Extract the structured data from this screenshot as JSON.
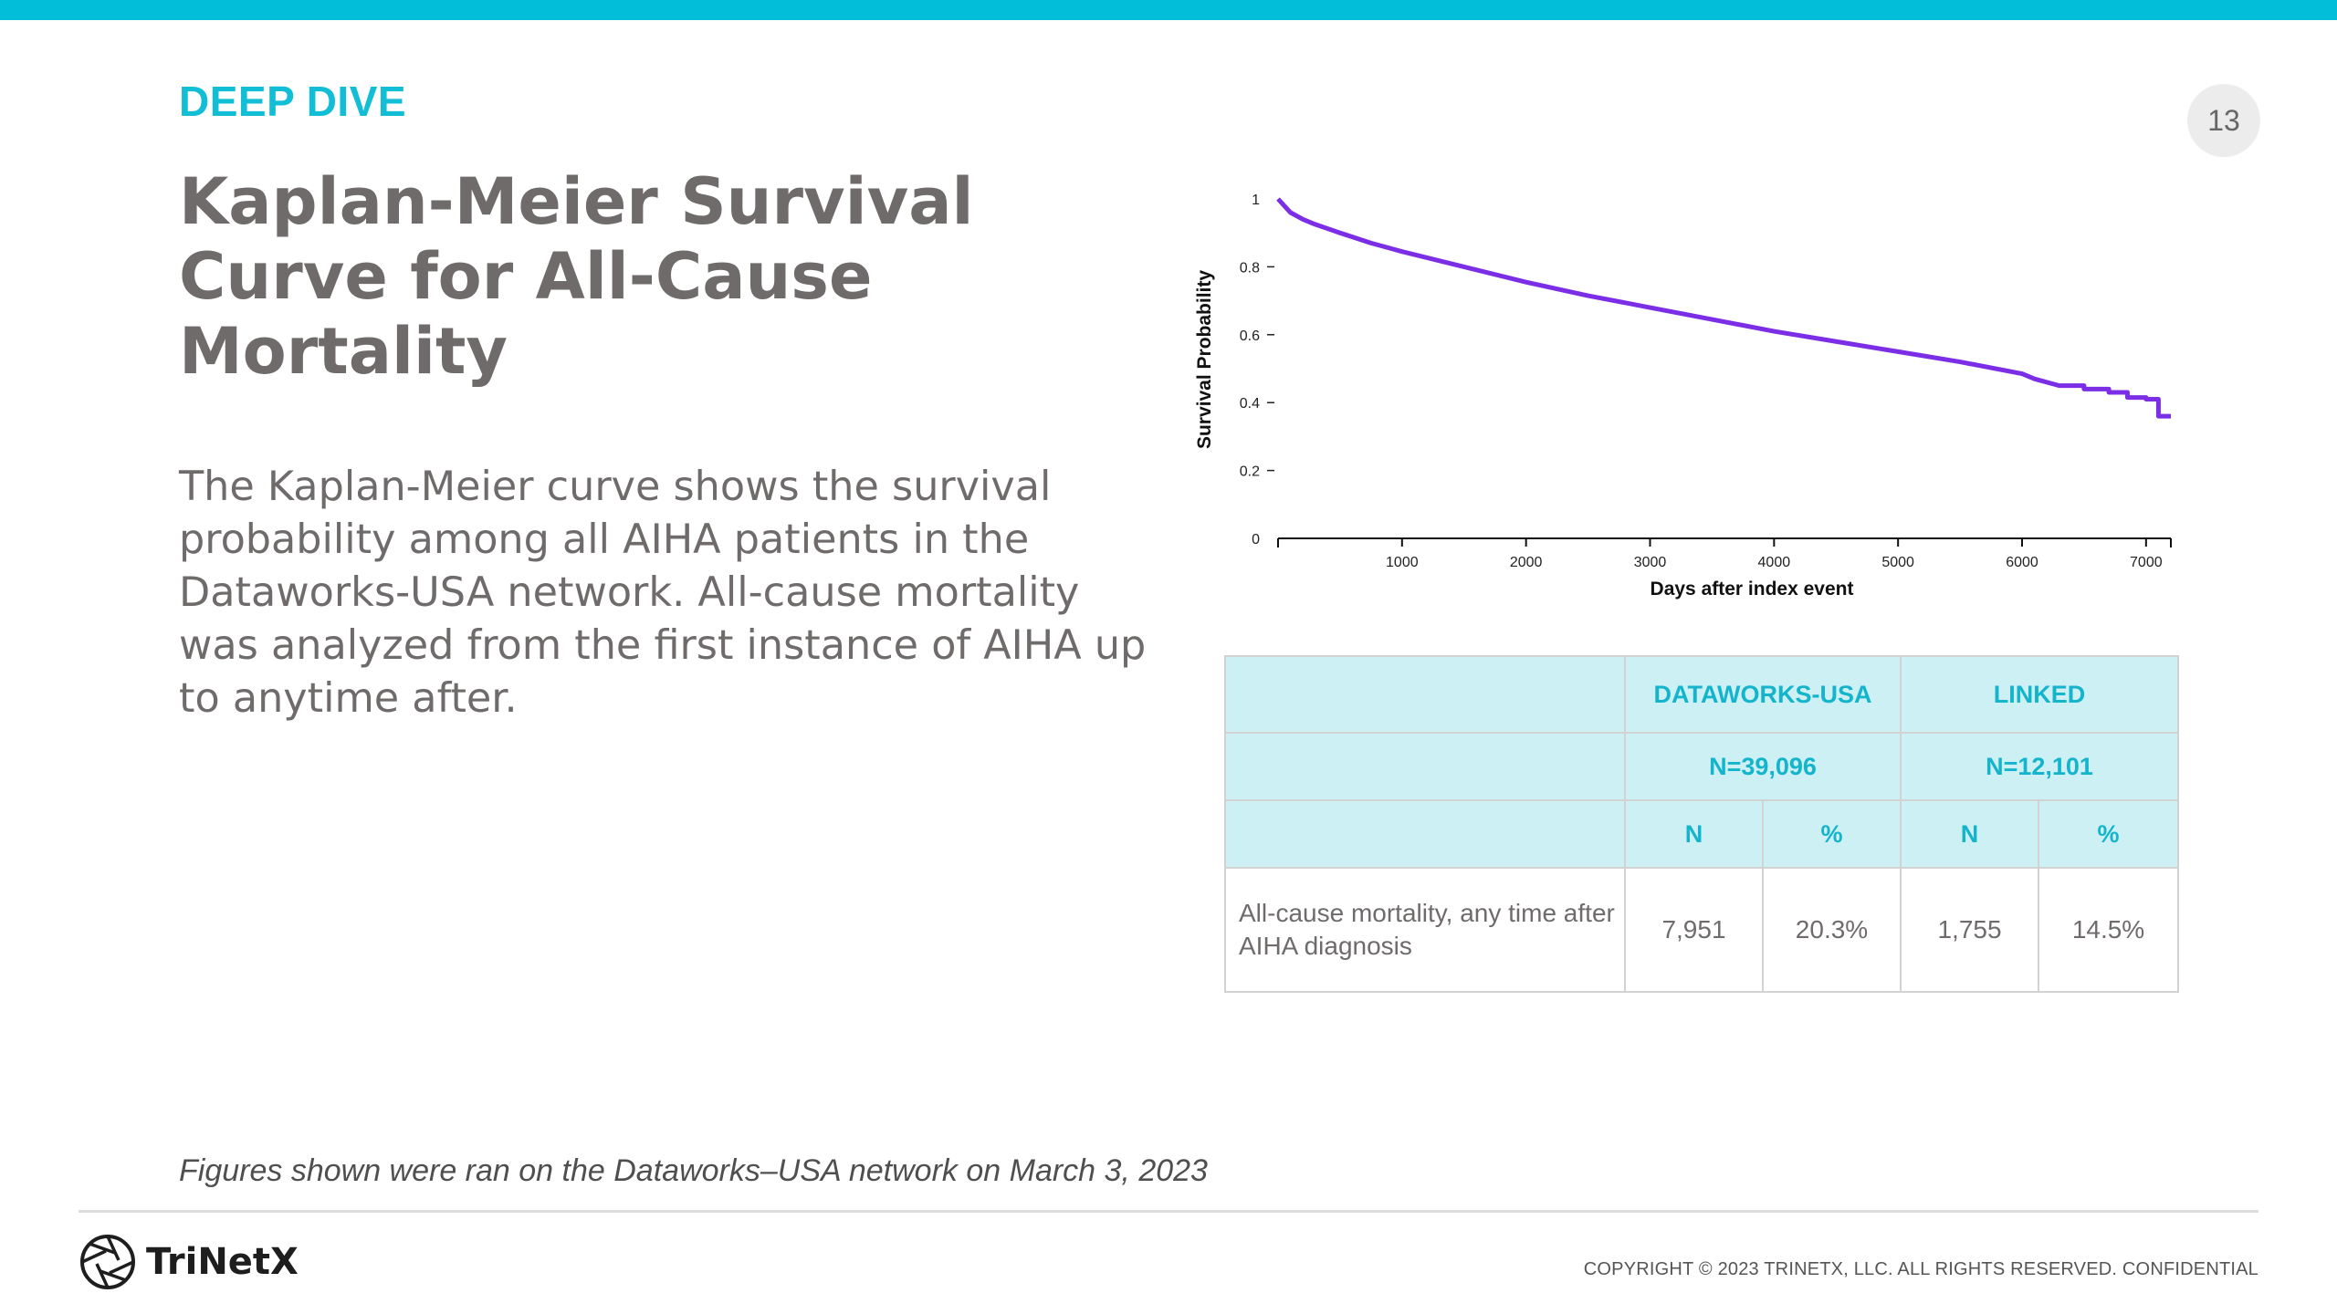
{
  "kicker": "DEEP DIVE",
  "page_number": "13",
  "title": "Kaplan-Meier Survival Curve for All-Cause Mortality",
  "body": "The Kaplan-Meier curve shows the survival probability among all AIHA patients in the Dataworks-USA network. All-cause mortality was analyzed from the first instance of AIHA up to anytime after.",
  "footnote": "Figures shown were ran on the Dataworks–USA network on March 3, 2023",
  "logo_text": "TriNetX",
  "copyright": "COPYRIGHT © 2023 TRINETX, LLC. ALL RIGHTS RESERVED. CONFIDENTIAL",
  "colors": {
    "accent": "#02bed9",
    "curve": "#7b2ee6",
    "table_header_bg": "#cdf0f5",
    "text_gray": "#6f6b6b"
  },
  "chart_data": {
    "type": "line",
    "title": "",
    "xlabel": "Days after index event",
    "ylabel": "Survival Probability",
    "xlim": [
      0,
      7200
    ],
    "ylim": [
      0,
      1
    ],
    "x_ticks": [
      1000,
      2000,
      3000,
      4000,
      5000,
      6000,
      7000
    ],
    "y_ticks": [
      0,
      0.2,
      0.4,
      0.6,
      0.8,
      1
    ],
    "y_tick_labels": [
      "0",
      "0.2",
      "0.4",
      "0.6",
      "0.8",
      "1"
    ],
    "grid": false,
    "series": [
      {
        "x": [
          0,
          50,
          100,
          200,
          300,
          500,
          750,
          1000,
          1500,
          2000,
          2500,
          3000,
          3500,
          4000,
          4500,
          5000,
          5500,
          6000,
          6100,
          6300,
          6500,
          6700,
          6850,
          7000,
          7050,
          7100,
          7200
        ],
        "y": [
          1.0,
          0.98,
          0.96,
          0.94,
          0.925,
          0.9,
          0.87,
          0.845,
          0.8,
          0.755,
          0.715,
          0.68,
          0.645,
          0.61,
          0.58,
          0.55,
          0.52,
          0.485,
          0.47,
          0.45,
          0.44,
          0.43,
          0.415,
          0.41,
          0.41,
          0.36,
          0.36
        ]
      }
    ]
  },
  "table": {
    "groups": [
      {
        "name": "DATAWORKS-USA",
        "n": "N=39,096"
      },
      {
        "name": "LINKED",
        "n": "N=12,101"
      }
    ],
    "subheaders": [
      "N",
      "%",
      "N",
      "%"
    ],
    "row_label": "All-cause mortality, any time after AIHA diagnosis",
    "row_values": [
      "7,951",
      "20.3%",
      "1,755",
      "14.5%"
    ]
  }
}
